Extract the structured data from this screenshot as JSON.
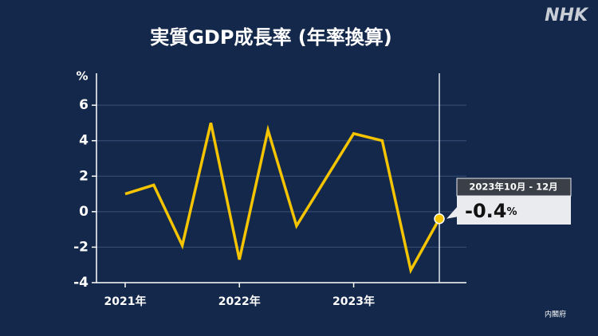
{
  "logo": "NHK",
  "source": "内閣府",
  "chart_data": {
    "type": "line",
    "title": "実質GDP成長率 (年率換算)",
    "ylabel": "%",
    "categories": [
      "2021年",
      null,
      null,
      null,
      "2022年",
      null,
      null,
      null,
      "2023年",
      null,
      null,
      null
    ],
    "series": [
      {
        "name": "実質GDP成長率",
        "color": "#f5c400",
        "values": [
          1.0,
          1.5,
          -1.9,
          5.0,
          -2.7,
          4.6,
          -0.8,
          1.8,
          4.4,
          4.0,
          -3.3,
          -0.4
        ]
      }
    ],
    "ylim": [
      -4,
      7.8
    ],
    "yticks": [
      -4,
      -2,
      0,
      2,
      4,
      6
    ],
    "grid": true,
    "tooltip": {
      "period": "2023年10月 - 12月"
    }
  }
}
